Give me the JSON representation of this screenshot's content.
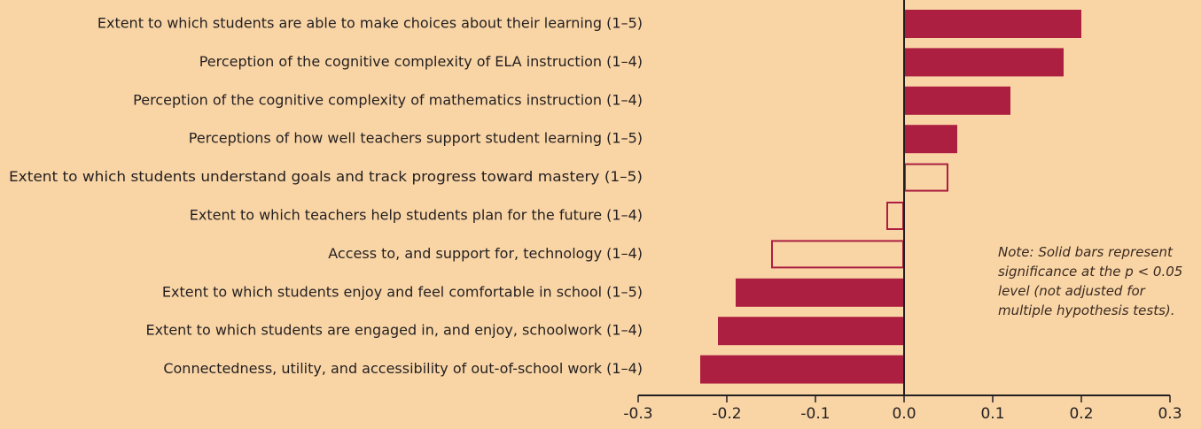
{
  "chart_data": {
    "type": "barh",
    "categories": [
      "Extent to which students are able to make choices about their learning (1–5)",
      "Perception of the cognitive complexity of ELA instruction (1–4)",
      "Perception of the cognitive complexity of mathematics instruction (1–4)",
      "Perceptions of how well teachers support student learning (1–5)",
      "Extent to which students understand goals and track progress toward mastery (1–5)",
      "Extent to which teachers help students plan for the future (1–4)",
      "Access to, and support for, technology (1–4)",
      "Extent to which students enjoy and feel comfortable in school (1–5)",
      "Extent to which students are engaged in, and enjoy, schoolwork (1–4)",
      "Connectedness, utility, and accessibility of out-of-school work (1–4)"
    ],
    "values": [
      0.2,
      0.18,
      0.12,
      0.06,
      0.05,
      -0.02,
      -0.15,
      -0.19,
      -0.21,
      -0.23
    ],
    "significant": [
      true,
      true,
      true,
      true,
      false,
      false,
      false,
      true,
      true,
      true
    ],
    "color": "#ac1f40",
    "xlim": [
      -0.3,
      0.3
    ],
    "xticks": [
      -0.3,
      -0.2,
      -0.1,
      {
        "value": 0,
        "label": "0.0"
      },
      0.1,
      0.2,
      0.3
    ],
    "annotation": "Note: Solid bars represent significance at the p < 0.05 level (not adjusted for multiple hypothesis tests)."
  }
}
